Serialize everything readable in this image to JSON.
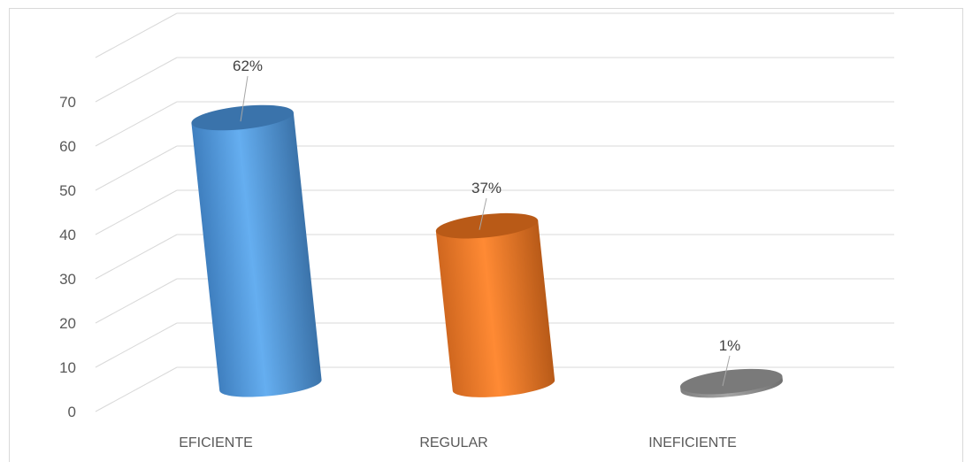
{
  "chart_data": {
    "type": "bar",
    "categories": [
      "EFICIENTE",
      "REGULAR",
      "INEFICIENTE"
    ],
    "values": [
      62,
      37,
      1
    ],
    "data_labels": [
      "62%",
      "37%",
      "1%"
    ],
    "y_ticks": [
      "0",
      "10",
      "20",
      "30",
      "40",
      "50",
      "60",
      "70"
    ],
    "ylim": [
      0,
      70
    ],
    "grid": true,
    "colors": [
      "#5b9bd5",
      "#ed7d31",
      "#a5a5a5"
    ],
    "title": "",
    "xlabel": "",
    "ylabel": ""
  }
}
